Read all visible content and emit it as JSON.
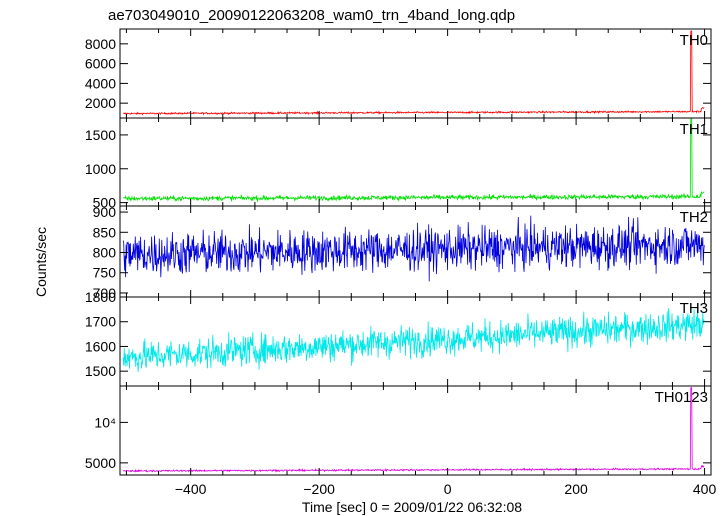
{
  "chart_data": {
    "type": "line",
    "title": "ae703049010_20090122063208_wam0_trn_4band_long.qdp",
    "xlabel": "Time [sec] 0 = 2009/01/22 06:32:08",
    "ylabel": "Counts/sec",
    "xlim": [
      -510,
      410
    ],
    "x_ticks": [
      -400,
      -200,
      0,
      200,
      400
    ],
    "grid": false,
    "legend": "none",
    "panels": [
      {
        "name": "TH0",
        "color": "#ff0000",
        "ylim": [
          500,
          9500
        ],
        "y_ticks": [
          2000,
          4000,
          6000,
          8000
        ],
        "y_tick_labels": [
          "2000",
          "4000",
          "6000",
          "8000"
        ],
        "baseline_start": 950,
        "baseline_end": 1150,
        "noise": 60,
        "spike": {
          "x": 378,
          "value": 9300
        },
        "end_jump": {
          "x": 395,
          "value": 1500
        }
      },
      {
        "name": "TH1",
        "color": "#00e000",
        "ylim": [
          450,
          1750
        ],
        "y_ticks": [
          500,
          1000,
          1500
        ],
        "y_tick_labels": [
          "500",
          "1000",
          "1500"
        ],
        "baseline_start": 560,
        "baseline_end": 590,
        "noise": 25,
        "spike": {
          "x": 378,
          "value": 1750
        },
        "end_jump": {
          "x": 395,
          "value": 650
        }
      },
      {
        "name": "TH2",
        "color": "#0000dd",
        "ylim": [
          690,
          915
        ],
        "y_ticks": [
          700,
          750,
          800,
          850,
          900
        ],
        "y_tick_labels": [
          "700",
          "750",
          "800",
          "850",
          "900"
        ],
        "baseline_start": 795,
        "baseline_end": 820,
        "noise": 38
      },
      {
        "name": "TH3",
        "color": "#00e8e8",
        "ylim": [
          1440,
          1800
        ],
        "y_ticks": [
          1500,
          1600,
          1700,
          1800
        ],
        "y_tick_labels": [
          "1500",
          "1600",
          "1700",
          "1800"
        ],
        "baseline_start": 1555,
        "baseline_end": 1690,
        "noise": 45
      },
      {
        "name": "TH0123",
        "color": "#dd00dd",
        "ylim": [
          3500,
          14500
        ],
        "y_ticks": [
          5000,
          10000
        ],
        "y_tick_labels": [
          "5000",
          "10⁴"
        ],
        "baseline_start": 4000,
        "baseline_end": 4250,
        "noise": 70,
        "spike": {
          "x": 378,
          "value": 14300
        },
        "end_jump": {
          "x": 395,
          "value": 4600
        }
      }
    ]
  }
}
